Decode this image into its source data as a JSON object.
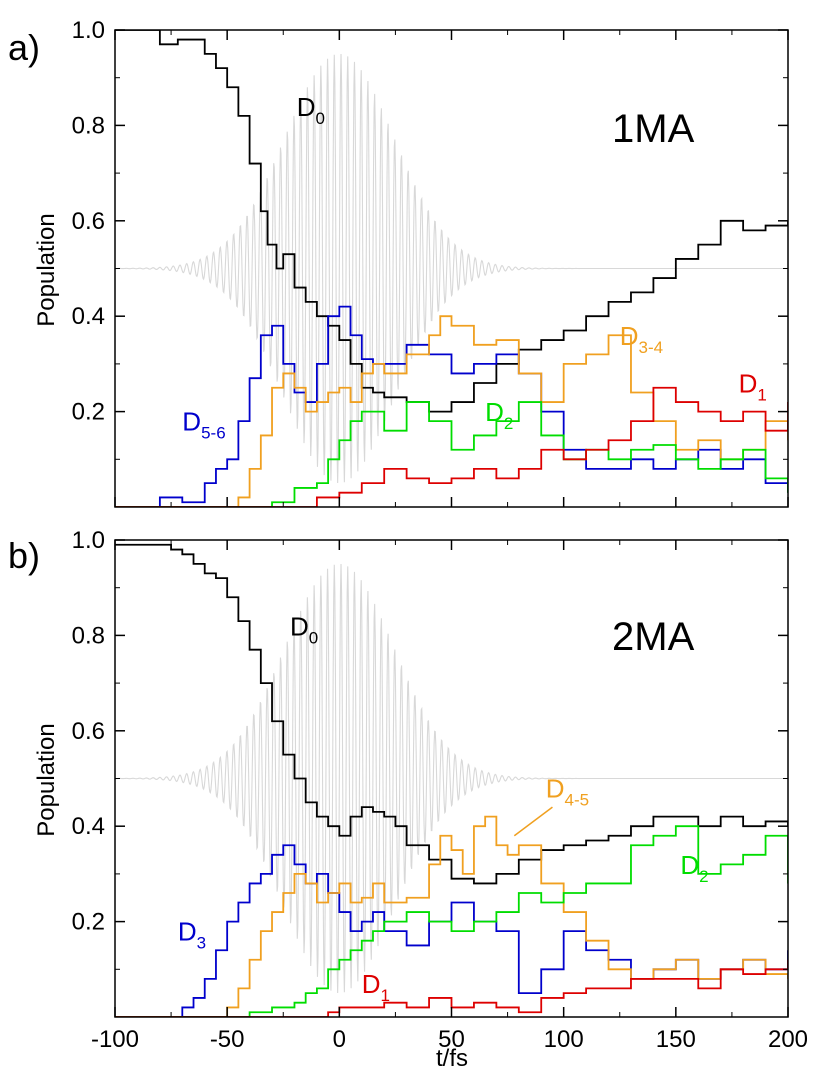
{
  "chart_data": [
    {
      "type": "line",
      "panel_label": "a)",
      "molecule_label": "1MA",
      "xlabel": "",
      "ylabel": "Population",
      "xlim": [
        -100,
        200
      ],
      "ylim": [
        0,
        1.0
      ],
      "x_ticks": [],
      "y_ticks": [
        "0.2",
        "0.4",
        "0.6",
        "0.8",
        "1.0"
      ],
      "y_tick_values": [
        0.2,
        0.4,
        0.6,
        0.8,
        1.0
      ],
      "grid": false,
      "background_pulse": {
        "center": 0,
        "baseline": 0.5,
        "max_amplitude": 0.45,
        "width_fs": 35,
        "color": "#d8d8d8"
      },
      "series": [
        {
          "name": "D0",
          "label_main": "D",
          "label_sub": "0",
          "color": "#000000",
          "x": [
            -100,
            -85,
            -80,
            -72,
            -65,
            -60,
            -55,
            -50,
            -45,
            -40,
            -35,
            -32,
            -28,
            -25,
            -20,
            -15,
            -10,
            -5,
            0,
            5,
            10,
            15,
            20,
            30,
            40,
            50,
            60,
            70,
            80,
            90,
            100,
            110,
            120,
            130,
            140,
            150,
            160,
            170,
            180,
            190,
            200
          ],
          "y": [
            1.0,
            1.0,
            0.97,
            0.98,
            0.98,
            0.95,
            0.92,
            0.88,
            0.82,
            0.72,
            0.62,
            0.55,
            0.5,
            0.53,
            0.46,
            0.43,
            0.4,
            0.38,
            0.35,
            0.3,
            0.25,
            0.24,
            0.23,
            0.22,
            0.2,
            0.22,
            0.26,
            0.3,
            0.33,
            0.35,
            0.37,
            0.4,
            0.43,
            0.45,
            0.48,
            0.52,
            0.55,
            0.6,
            0.58,
            0.59,
            0.6
          ],
          "label_pos": [
            -19,
            0.82
          ],
          "label_color": "#000000"
        },
        {
          "name": "D5-6",
          "label_main": "D",
          "label_sub": "5-6",
          "color": "#0000cc",
          "x": [
            -100,
            -85,
            -80,
            -70,
            -60,
            -55,
            -50,
            -45,
            -40,
            -35,
            -30,
            -25,
            -20,
            -15,
            -10,
            -5,
            0,
            5,
            10,
            15,
            20,
            30,
            40,
            50,
            60,
            70,
            80,
            90,
            100,
            110,
            120,
            130,
            140,
            150,
            160,
            170,
            180,
            190,
            200
          ],
          "y": [
            0,
            0,
            0.02,
            0.01,
            0.05,
            0.08,
            0.1,
            0.18,
            0.27,
            0.36,
            0.38,
            0.3,
            0.24,
            0.22,
            0.3,
            0.4,
            0.42,
            0.36,
            0.31,
            0.3,
            0.3,
            0.34,
            0.32,
            0.28,
            0.3,
            0.32,
            0.28,
            0.2,
            0.12,
            0.08,
            0.08,
            0.1,
            0.08,
            0.1,
            0.12,
            0.08,
            0.1,
            0.05,
            0.03
          ],
          "label_pos": [
            -70,
            0.16
          ],
          "label_color": "#0000cc"
        },
        {
          "name": "D3-4",
          "label_main": "D",
          "label_sub": "3-4",
          "color": "#f0a020",
          "x": [
            -100,
            -50,
            -45,
            -40,
            -35,
            -30,
            -25,
            -20,
            -15,
            -10,
            -5,
            0,
            5,
            10,
            15,
            20,
            30,
            40,
            45,
            50,
            60,
            70,
            80,
            90,
            100,
            110,
            120,
            130,
            140,
            150,
            160,
            170,
            180,
            190,
            200
          ],
          "y": [
            0,
            0,
            0.02,
            0.08,
            0.15,
            0.25,
            0.28,
            0.25,
            0.2,
            0.22,
            0.24,
            0.25,
            0.22,
            0.28,
            0.3,
            0.28,
            0.32,
            0.36,
            0.4,
            0.38,
            0.34,
            0.35,
            0.28,
            0.22,
            0.3,
            0.32,
            0.36,
            0.24,
            0.18,
            0.12,
            0.14,
            0.1,
            0.12,
            0.18,
            0.14
          ],
          "label_pos": [
            125,
            0.34
          ],
          "label_color": "#f0a020"
        },
        {
          "name": "D2",
          "label_main": "D",
          "label_sub": "2",
          "color": "#00dd00",
          "x": [
            -100,
            -35,
            -30,
            -20,
            -10,
            -5,
            0,
            5,
            10,
            15,
            20,
            30,
            40,
            50,
            60,
            70,
            80,
            90,
            100,
            110,
            120,
            130,
            140,
            150,
            160,
            170,
            180,
            190,
            200
          ],
          "y": [
            0,
            0,
            0.01,
            0.04,
            0.05,
            0.1,
            0.14,
            0.18,
            0.2,
            0.2,
            0.16,
            0.22,
            0.18,
            0.12,
            0.15,
            0.18,
            0.22,
            0.15,
            0.1,
            0.12,
            0.1,
            0.12,
            0.13,
            0.1,
            0.08,
            0.1,
            0.12,
            0.06,
            0.03
          ],
          "label_pos": [
            65,
            0.18
          ],
          "label_color": "#00dd00"
        },
        {
          "name": "D1",
          "label_main": "D",
          "label_sub": "1",
          "color": "#dd0000",
          "x": [
            -100,
            -15,
            -10,
            0,
            10,
            20,
            30,
            40,
            50,
            60,
            70,
            80,
            90,
            100,
            110,
            120,
            130,
            140,
            150,
            160,
            170,
            180,
            190,
            200
          ],
          "y": [
            0,
            0,
            0.02,
            0.03,
            0.05,
            0.08,
            0.06,
            0.05,
            0.06,
            0.08,
            0.06,
            0.08,
            0.12,
            0.1,
            0.12,
            0.14,
            0.18,
            0.25,
            0.22,
            0.2,
            0.18,
            0.2,
            0.16,
            0.22
          ],
          "label_pos": [
            178,
            0.24
          ],
          "label_color": "#dd0000"
        }
      ]
    },
    {
      "type": "line",
      "panel_label": "b)",
      "molecule_label": "2MA",
      "xlabel": "t/fs",
      "ylabel": "Population",
      "xlim": [
        -100,
        200
      ],
      "ylim": [
        0,
        1.0
      ],
      "x_ticks": [
        "-100",
        "-50",
        "0",
        "50",
        "100",
        "150",
        "200"
      ],
      "x_tick_values": [
        -100,
        -50,
        0,
        50,
        100,
        150,
        200
      ],
      "y_ticks": [
        "0.2",
        "0.4",
        "0.6",
        "0.8",
        "1.0"
      ],
      "y_tick_values": [
        0.2,
        0.4,
        0.6,
        0.8,
        1.0
      ],
      "grid": false,
      "background_pulse": {
        "center": 0,
        "baseline": 0.5,
        "max_amplitude": 0.45,
        "width_fs": 35,
        "color": "#d8d8d8"
      },
      "series": [
        {
          "name": "D0",
          "label_main": "D",
          "label_sub": "0",
          "color": "#000000",
          "x": [
            -100,
            -85,
            -75,
            -70,
            -65,
            -60,
            -55,
            -50,
            -45,
            -40,
            -35,
            -30,
            -25,
            -20,
            -15,
            -10,
            -5,
            0,
            5,
            10,
            15,
            20,
            25,
            30,
            40,
            50,
            60,
            70,
            80,
            90,
            100,
            110,
            120,
            130,
            140,
            150,
            160,
            170,
            180,
            190,
            200
          ],
          "y": [
            0.99,
            0.99,
            0.98,
            0.97,
            0.95,
            0.93,
            0.92,
            0.88,
            0.83,
            0.77,
            0.7,
            0.62,
            0.55,
            0.5,
            0.45,
            0.42,
            0.4,
            0.38,
            0.42,
            0.44,
            0.43,
            0.42,
            0.4,
            0.36,
            0.33,
            0.29,
            0.28,
            0.3,
            0.33,
            0.35,
            0.36,
            0.37,
            0.38,
            0.4,
            0.42,
            0.42,
            0.4,
            0.42,
            0.4,
            0.41,
            0.4
          ],
          "label_pos": [
            -22,
            0.8
          ],
          "label_color": "#000000"
        },
        {
          "name": "D3",
          "label_main": "D",
          "label_sub": "3",
          "color": "#0000cc",
          "x": [
            -100,
            -75,
            -70,
            -65,
            -60,
            -55,
            -50,
            -45,
            -40,
            -35,
            -30,
            -25,
            -20,
            -15,
            -10,
            -5,
            0,
            5,
            10,
            15,
            20,
            30,
            40,
            50,
            60,
            70,
            80,
            90,
            100,
            110,
            120,
            130,
            140,
            150,
            160,
            170,
            180,
            190,
            200
          ],
          "y": [
            0,
            0,
            0.02,
            0.04,
            0.08,
            0.14,
            0.2,
            0.24,
            0.28,
            0.3,
            0.34,
            0.36,
            0.32,
            0.28,
            0.3,
            0.26,
            0.22,
            0.18,
            0.2,
            0.22,
            0.18,
            0.15,
            0.2,
            0.24,
            0.2,
            0.18,
            0.05,
            0.1,
            0.18,
            0.14,
            0.12,
            0.08,
            0.1,
            0.12,
            0.08,
            0.1,
            0.12,
            0.1,
            0.14
          ],
          "label_pos": [
            -72,
            0.16
          ],
          "label_color": "#0000cc"
        },
        {
          "name": "D4-5",
          "label_main": "D",
          "label_sub": "4-5",
          "color": "#f0a020",
          "x": [
            -100,
            -55,
            -50,
            -45,
            -40,
            -35,
            -30,
            -25,
            -20,
            -15,
            -10,
            -5,
            0,
            5,
            10,
            15,
            20,
            30,
            40,
            45,
            50,
            55,
            60,
            65,
            70,
            75,
            80,
            90,
            100,
            110,
            120,
            130,
            140,
            150,
            160,
            170,
            180,
            190,
            200
          ],
          "y": [
            0,
            0,
            0.02,
            0.06,
            0.12,
            0.18,
            0.22,
            0.26,
            0.3,
            0.28,
            0.24,
            0.26,
            0.28,
            0.24,
            0.25,
            0.28,
            0.24,
            0.25,
            0.32,
            0.38,
            0.35,
            0.3,
            0.4,
            0.42,
            0.36,
            0.34,
            0.36,
            0.28,
            0.22,
            0.16,
            0.1,
            0.08,
            0.1,
            0.12,
            0.08,
            0.1,
            0.12,
            0.09,
            0.08
          ],
          "label_pos": [
            92,
            0.46
          ],
          "label_color": "#f0a020",
          "leader": [
            [
              95,
              0.44
            ],
            [
              78,
              0.38
            ]
          ]
        },
        {
          "name": "D2",
          "label_main": "D",
          "label_sub": "2",
          "color": "#00dd00",
          "x": [
            -100,
            -45,
            -40,
            -30,
            -20,
            -15,
            -10,
            -5,
            0,
            5,
            10,
            15,
            20,
            30,
            40,
            50,
            60,
            70,
            80,
            90,
            100,
            110,
            120,
            130,
            140,
            150,
            160,
            170,
            180,
            190,
            200
          ],
          "y": [
            0,
            0,
            0.01,
            0.02,
            0.03,
            0.05,
            0.06,
            0.1,
            0.12,
            0.14,
            0.16,
            0.18,
            0.2,
            0.22,
            0.2,
            0.18,
            0.2,
            0.22,
            0.26,
            0.24,
            0.26,
            0.28,
            0.28,
            0.36,
            0.38,
            0.4,
            0.3,
            0.32,
            0.34,
            0.38,
            0.28
          ],
          "label_pos": [
            152,
            0.3
          ],
          "label_color": "#00dd00"
        },
        {
          "name": "D1",
          "label_main": "D",
          "label_sub": "1",
          "color": "#dd0000",
          "x": [
            -100,
            -10,
            -5,
            0,
            10,
            20,
            30,
            40,
            50,
            60,
            70,
            80,
            90,
            100,
            110,
            120,
            130,
            140,
            150,
            160,
            170,
            180,
            190,
            200
          ],
          "y": [
            0,
            0,
            0.01,
            0.02,
            0.02,
            0.03,
            0.02,
            0.04,
            0.02,
            0.03,
            0.02,
            0.01,
            0.04,
            0.05,
            0.06,
            0.06,
            0.08,
            0.08,
            0.08,
            0.06,
            0.1,
            0.09,
            0.1,
            0.12
          ],
          "label_pos": [
            10,
            0.05
          ],
          "label_color": "#dd0000"
        }
      ]
    }
  ]
}
